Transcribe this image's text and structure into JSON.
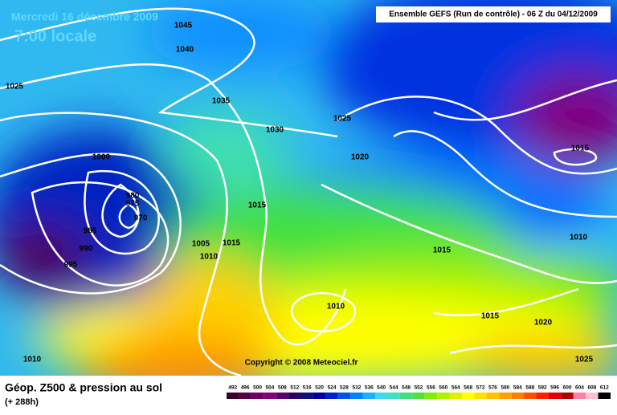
{
  "header": {
    "date": "Mercredi 16 décembre 2009",
    "time": "7:00 locale",
    "run": "Ensemble GEFS (Run de contrôle)  -  06 Z du 04/12/2009"
  },
  "isobar_labels": [
    "1045",
    "1040",
    "1025",
    "1035",
    "1030",
    "1025",
    "1020",
    "1000",
    "980",
    "975",
    "970",
    "985",
    "990",
    "995",
    "1015",
    "1005",
    "1010",
    "1015",
    "1015",
    "1010",
    "1015",
    "1020",
    "1010",
    "1025",
    "1015",
    "1010"
  ],
  "copyright": "Copyright © 2008 Meteociel.fr",
  "footer": {
    "title": "Géop. Z500 & pression au sol",
    "lead": "(+ 288h)"
  },
  "legend": {
    "labels": [
      "492",
      "496",
      "500",
      "504",
      "508",
      "512",
      "516",
      "520",
      "524",
      "528",
      "532",
      "536",
      "540",
      "544",
      "548",
      "552",
      "556",
      "560",
      "564",
      "568",
      "572",
      "576",
      "580",
      "584",
      "588",
      "592",
      "596",
      "600",
      "604",
      "608",
      "612"
    ],
    "colors": [
      "#3a0030",
      "#560048",
      "#70005e",
      "#860078",
      "#5a0070",
      "#2a0068",
      "#10107a",
      "#0000a8",
      "#0020d0",
      "#0050f0",
      "#0080ff",
      "#20b0ff",
      "#40d8f0",
      "#40e0c0",
      "#40e080",
      "#50e040",
      "#80f000",
      "#b0f000",
      "#e0f000",
      "#ffff00",
      "#ffe000",
      "#ffc000",
      "#ffa000",
      "#ff8000",
      "#ff5000",
      "#ff2000",
      "#e00000",
      "#b00000",
      "#ff80a0",
      "#ffc0d0",
      "#000000"
    ]
  }
}
